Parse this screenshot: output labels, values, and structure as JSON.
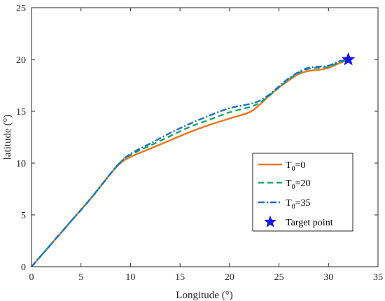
{
  "chart_data": {
    "type": "line",
    "xlabel": "Longitude (°)",
    "ylabel": "latitude (°)",
    "xlim": [
      0,
      35
    ],
    "ylim": [
      0,
      25
    ],
    "xticks": [
      0,
      5,
      10,
      15,
      20,
      25,
      30,
      35
    ],
    "yticks": [
      0,
      5,
      10,
      15,
      20,
      25
    ],
    "grid": false,
    "legend_position": "lower-right",
    "series": [
      {
        "name_main": "T",
        "name_sub": "0",
        "name_rest": "=0",
        "style": "solid",
        "color": "#EE7420",
        "points": [
          [
            0,
            0
          ],
          [
            2,
            2.2
          ],
          [
            4,
            4.4
          ],
          [
            6,
            6.6
          ],
          [
            8,
            9.0
          ],
          [
            9,
            10.0
          ],
          [
            10,
            10.6
          ],
          [
            12,
            11.4
          ],
          [
            14,
            12.2
          ],
          [
            16,
            13.0
          ],
          [
            18,
            13.7
          ],
          [
            20,
            14.3
          ],
          [
            22,
            14.9
          ],
          [
            23,
            15.6
          ],
          [
            24,
            16.5
          ],
          [
            25,
            17.3
          ],
          [
            26,
            18.0
          ],
          [
            27,
            18.6
          ],
          [
            28,
            18.9
          ],
          [
            29,
            19.0
          ],
          [
            30,
            19.2
          ],
          [
            31,
            19.6
          ],
          [
            32,
            20.0
          ]
        ]
      },
      {
        "name_main": "T",
        "name_sub": "0",
        "name_rest": "=20",
        "style": "dashed",
        "color": "#0FA86B",
        "points": [
          [
            0,
            0
          ],
          [
            2,
            2.2
          ],
          [
            4,
            4.4
          ],
          [
            6,
            6.6
          ],
          [
            8,
            9.0
          ],
          [
            9,
            10.1
          ],
          [
            10,
            10.8
          ],
          [
            12,
            11.7
          ],
          [
            14,
            12.6
          ],
          [
            16,
            13.5
          ],
          [
            18,
            14.2
          ],
          [
            20,
            14.9
          ],
          [
            22,
            15.4
          ],
          [
            23,
            15.8
          ],
          [
            24,
            16.5
          ],
          [
            25,
            17.3
          ],
          [
            26,
            18.1
          ],
          [
            27,
            18.7
          ],
          [
            28,
            19.1
          ],
          [
            29,
            19.2
          ],
          [
            30,
            19.3
          ],
          [
            31,
            19.7
          ],
          [
            32,
            20.0
          ]
        ]
      },
      {
        "name_main": "T",
        "name_sub": "0",
        "name_rest": "=35",
        "style": "dashdot",
        "color": "#1F6FC4",
        "points": [
          [
            0,
            0
          ],
          [
            2,
            2.2
          ],
          [
            4,
            4.4
          ],
          [
            6,
            6.6
          ],
          [
            8,
            9.0
          ],
          [
            9,
            10.1
          ],
          [
            10,
            10.9
          ],
          [
            12,
            11.9
          ],
          [
            14,
            12.9
          ],
          [
            16,
            13.8
          ],
          [
            18,
            14.6
          ],
          [
            20,
            15.3
          ],
          [
            22,
            15.7
          ],
          [
            23,
            16.0
          ],
          [
            24,
            16.6
          ],
          [
            25,
            17.4
          ],
          [
            26,
            18.2
          ],
          [
            27,
            18.8
          ],
          [
            28,
            19.2
          ],
          [
            29,
            19.3
          ],
          [
            30,
            19.4
          ],
          [
            31,
            19.8
          ],
          [
            32,
            20.0
          ]
        ]
      }
    ],
    "target": {
      "name": "Target point",
      "x": 32,
      "y": 20,
      "color": "#1515E0"
    }
  }
}
